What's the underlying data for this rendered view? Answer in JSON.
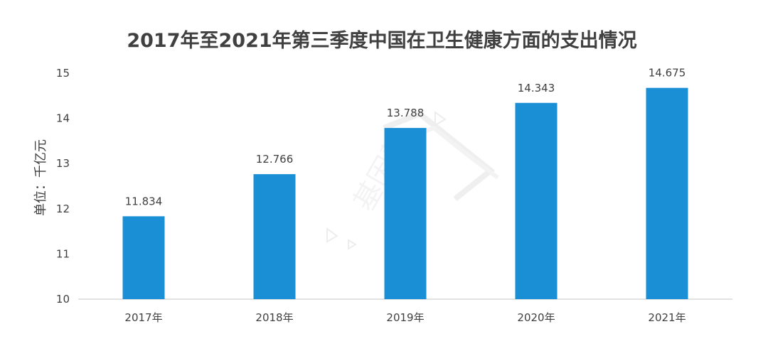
{
  "chart_data": {
    "type": "bar",
    "title": "2017年至2021年第三季度中国在卫生健康方面的支出情况",
    "ylabel": "单位：千亿元",
    "xlabel": "",
    "categories": [
      "2017年",
      "2018年",
      "2019年",
      "2020年",
      "2021年"
    ],
    "values": [
      11.834,
      12.766,
      13.788,
      14.343,
      14.675
    ],
    "value_labels": [
      "11.834",
      "12.766",
      "13.788",
      "14.343",
      "14.675"
    ],
    "ylim": [
      10,
      15
    ],
    "yticks": [
      "10",
      "11",
      "12",
      "13",
      "14",
      "15"
    ],
    "grid": false,
    "bar_color": "#1a8fd6",
    "axis_color": "#d9d9d9",
    "watermark": "基因慧"
  }
}
